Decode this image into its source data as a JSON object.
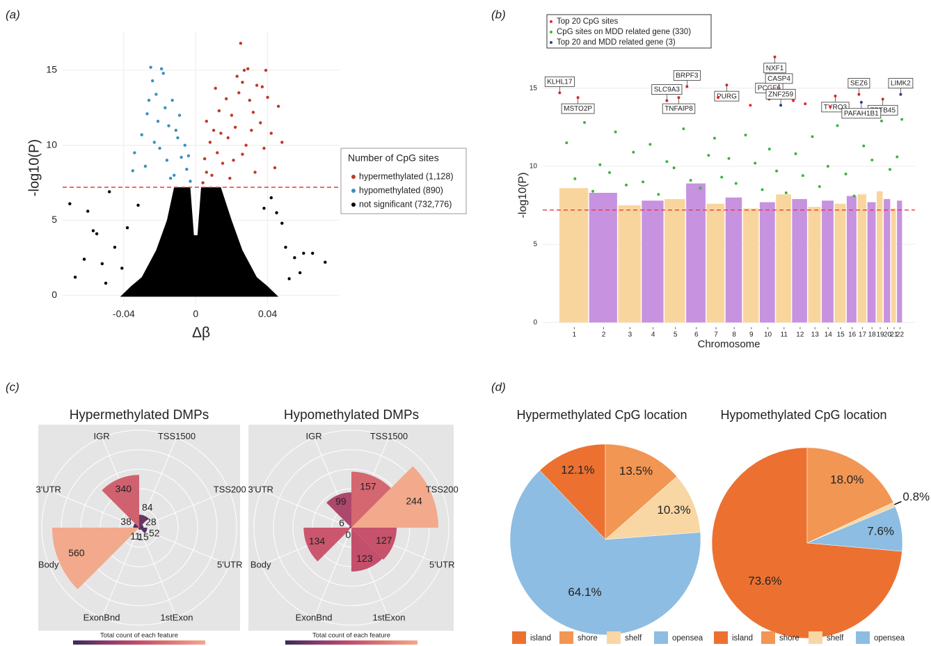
{
  "chart_data": [
    {
      "type": "scatter",
      "panel_label": "(a)",
      "x_label": "Δβ",
      "y_label": "-log10(P)",
      "xlim": [
        -0.074,
        0.08
      ],
      "ylim": [
        -0.6,
        17.6
      ],
      "xticks": [
        -0.04,
        0,
        0.04
      ],
      "yticks": [
        0,
        5,
        10,
        15
      ],
      "grid": true,
      "threshold": 7.2,
      "threshold_color": "#e8393a",
      "legend_title": "Number of CpG sites",
      "legend_position": "right",
      "series": [
        {
          "name": "hypermethylated (1,128)",
          "color": "#c0392b",
          "x": [
            0.004,
            0.006,
            0.005,
            0.008,
            0.01,
            0.012,
            0.015,
            0.018,
            0.02,
            0.022,
            0.024,
            0.026,
            0.027,
            0.025,
            0.03,
            0.032,
            0.034,
            0.036,
            0.038,
            0.04,
            0.042,
            0.044,
            0.046,
            0.017,
            0.013,
            0.009,
            0.021,
            0.028,
            0.033,
            0.048,
            0.031,
            0.023,
            0.019,
            0.011,
            0.029,
            0.037,
            0.026,
            0.014,
            0.006,
            0.039
          ],
          "y": [
            7.5,
            8.2,
            9.1,
            10.2,
            11,
            9.5,
            8.8,
            10.5,
            12,
            11.2,
            13.5,
            14.2,
            15,
            16.8,
            13,
            12.2,
            14,
            11.5,
            9.8,
            13.2,
            10.8,
            8.5,
            12.6,
            13.1,
            12.3,
            8,
            9,
            10,
            8.2,
            10.2,
            11,
            14.6,
            7.8,
            13.8,
            15.1,
            13.9,
            9.4,
            10.8,
            11.6,
            15
          ]
        },
        {
          "name": "hypomethylated (890)",
          "color": "#3a8fc5",
          "x": [
            -0.003,
            -0.005,
            -0.008,
            -0.01,
            -0.012,
            -0.015,
            -0.017,
            -0.02,
            -0.022,
            -0.018,
            -0.025,
            -0.024,
            -0.027,
            -0.03,
            -0.028,
            -0.034,
            -0.035,
            -0.013,
            -0.009,
            -0.006,
            -0.016,
            -0.021,
            -0.019,
            -0.011,
            -0.004,
            -0.023,
            -0.014,
            -0.026
          ],
          "y": [
            7.6,
            8.4,
            9.2,
            10.5,
            8,
            11.3,
            12.5,
            9.8,
            13.4,
            14.8,
            15.2,
            14.3,
            12.1,
            10.7,
            8.6,
            9.5,
            8.3,
            13,
            12,
            10,
            9,
            11.6,
            15.1,
            11,
            9.3,
            10.2,
            7.8,
            13
          ]
        },
        {
          "name": "not significant (732,776)",
          "color": "#000000",
          "x": [
            -0.07,
            -0.06,
            -0.057,
            -0.048,
            -0.055,
            -0.067,
            -0.052,
            -0.045,
            -0.041,
            -0.05,
            0.05,
            0.055,
            0.06,
            0.065,
            0.072,
            0.058,
            0.048,
            0.045,
            0.042,
            -0.038,
            -0.032,
            0.038,
            -0.062,
            0.052
          ],
          "y": [
            6.1,
            5.6,
            4.3,
            6.9,
            4.1,
            1.2,
            2.1,
            3.2,
            1.8,
            0.8,
            3.2,
            2.5,
            2.8,
            2.8,
            2.2,
            1.5,
            4.8,
            5.5,
            6.5,
            4.5,
            6,
            5.8,
            2.4,
            1.1
          ],
          "dense_region": {
            "x": [
              -0.042,
              -0.036,
              -0.03,
              -0.022,
              -0.016,
              -0.012,
              -0.003,
              -0.001,
              0.001,
              0.003,
              0.014,
              0.02,
              0.026,
              0.034,
              0.04,
              0.046
            ],
            "y": [
              -0.1,
              0.6,
              1.2,
              3,
              5,
              7.2,
              7.2,
              4,
              4,
              7.2,
              7.2,
              5,
              3,
              1.2,
              0.6,
              -0.1
            ]
          }
        }
      ]
    },
    {
      "type": "manhattan",
      "panel_label": "(b)",
      "x_label": "Chromosome",
      "y_label": "-log10(P)",
      "xlim": [
        -140,
        2980
      ],
      "ylim": [
        -0.3,
        17.3
      ],
      "yticks": [
        0,
        5,
        10,
        15
      ],
      "grid": true,
      "xticks": [
        {
          "value": 124.5,
          "label": "1"
        },
        {
          "value": 370.5,
          "label": "2"
        },
        {
          "value": 591,
          "label": "3"
        },
        {
          "value": 785.5,
          "label": "4"
        },
        {
          "value": 971.5,
          "label": "5"
        },
        {
          "value": 1147.5,
          "label": "6"
        },
        {
          "value": 1312.5,
          "label": "7"
        },
        {
          "value": 1465,
          "label": "8"
        },
        {
          "value": 1608.5,
          "label": "9"
        },
        {
          "value": 1747,
          "label": "10"
        },
        {
          "value": 1882.5,
          "label": "11"
        },
        {
          "value": 2017,
          "label": "12"
        },
        {
          "value": 2141.5,
          "label": "13"
        },
        {
          "value": 2252.5,
          "label": "14"
        },
        {
          "value": 2357,
          "label": "15"
        },
        {
          "value": 2453,
          "label": "16"
        },
        {
          "value": 2539.5,
          "label": "17"
        },
        {
          "value": 2619.5,
          "label": "18"
        },
        {
          "value": 2688.5,
          "label": "19"
        },
        {
          "value": 2749.5,
          "label": "20"
        },
        {
          "value": 2805,
          "label": "21"
        },
        {
          "value": 2854.5,
          "label": "22"
        }
      ],
      "chromosome_edges": [
        0,
        249,
        492,
        690,
        881,
        1062,
        1233,
        1392,
        1538,
        1679,
        1815,
        1950,
        2084,
        2199,
        2306,
        2408,
        2498,
        2581,
        2659,
        2718,
        2781,
        2829,
        2880
      ],
      "density_top": [
        8.6,
        8.3,
        7.5,
        7.8,
        7.9,
        8.9,
        7.6,
        8.0,
        7.3,
        7.7,
        8.2,
        7.9,
        7.4,
        7.8,
        7.6,
        8.1,
        8.2,
        7.7,
        8.4,
        7.9,
        7.3,
        7.8
      ],
      "band_colors": [
        "#f9d59e",
        "#c792df"
      ],
      "threshold": 7.2,
      "threshold_color": "#e8393a",
      "legend_position": "top-left",
      "series": [
        {
          "name": "Top 20 CpG sites",
          "color": "#e8262b",
          "x": [
            2,
            155,
            900,
            1000,
            1069,
            1402,
            1758,
            1805,
            1840,
            2312,
            2510,
            2710,
            1330,
            1600,
            2060,
            2270,
            1960
          ],
          "y": [
            14.7,
            14.4,
            14.2,
            14.4,
            15.1,
            15.2,
            14.3,
            17.0,
            14.9,
            14.5,
            14.6,
            14.3,
            14.4,
            13.9,
            14.0,
            13.8,
            14.2
          ],
          "labels": [
            "KLHL17",
            "MSTO2P",
            "SLC9A3",
            "TNFAIP8",
            "BRPF3",
            "PURG",
            "PCGF6",
            "NXF1",
            "CASP4",
            "TYRO3",
            "SEZ6",
            "ZBTB45",
            null,
            null,
            null,
            null,
            null
          ]
        },
        {
          "name": "CpG sites on MDD related gene (330)",
          "color": "#3cb43c",
          "x": [
            60,
            130,
            210,
            280,
            340,
            420,
            470,
            560,
            620,
            700,
            760,
            830,
            900,
            960,
            1040,
            1100,
            1180,
            1250,
            1300,
            1360,
            1420,
            1480,
            1560,
            1640,
            1700,
            1760,
            1820,
            1900,
            1980,
            2040,
            2120,
            2180,
            2250,
            2330,
            2400,
            2470,
            2550,
            2620,
            2700,
            2770,
            2830,
            2870
          ],
          "y": [
            11.5,
            9.2,
            12.8,
            8.4,
            10.1,
            9.6,
            12.2,
            8.8,
            10.9,
            9.0,
            11.4,
            8.2,
            10.3,
            9.9,
            12.4,
            9.1,
            8.6,
            10.7,
            11.8,
            9.3,
            10.5,
            8.9,
            12.0,
            10.2,
            8.5,
            11.1,
            9.7,
            8.3,
            10.8,
            9.4,
            11.9,
            8.7,
            10.0,
            12.6,
            9.5,
            8.1,
            11.3,
            10.4,
            12.9,
            9.8,
            10.6,
            13.0
          ]
        },
        {
          "name": "Top 20 and MDD related gene (3)",
          "color": "#2b3fa8",
          "x": [
            1855,
            2530,
            2860
          ],
          "y": [
            13.9,
            14.1,
            14.6
          ],
          "labels": [
            "ZNF259",
            "PAFAH1B1",
            "LIMK2"
          ]
        }
      ]
    },
    {
      "type": "polar_bar",
      "panel_label": "(c)",
      "title": "Hypermethylated DMPs",
      "categories": [
        "IGR",
        "TSS1500",
        "TSS200",
        "5'UTR",
        "1stExon",
        "ExonBnd",
        "Body",
        "3'UTR"
      ],
      "values": [
        340,
        84,
        28,
        52,
        15,
        11,
        560,
        38
      ],
      "colorscale": [
        "#3b2c5c",
        "#8a3b6c",
        "#c44e6c",
        "#e07a72",
        "#f2a98c"
      ],
      "colorbar_label": "Total count of each feature"
    },
    {
      "type": "polar_bar",
      "title": "Hypomethylated DMPs",
      "categories": [
        "IGR",
        "TSS1500",
        "TSS200",
        "5'UTR",
        "1stExon",
        "ExonBnd",
        "Body",
        "3'UTR"
      ],
      "values": [
        99,
        157,
        244,
        127,
        123,
        0,
        134,
        6
      ],
      "colorscale": [
        "#3b2c5c",
        "#8a3b6c",
        "#c44e6c",
        "#e07a72",
        "#f2a98c"
      ],
      "colorbar_label": "Total count of each feature"
    },
    {
      "type": "pie",
      "panel_label": "(d)",
      "title": "Hypermethylated CpG location",
      "categories": [
        "island",
        "shore",
        "shelf",
        "opensea"
      ],
      "values": [
        12.1,
        13.5,
        10.3,
        64.1
      ],
      "value_labels": [
        "12.1%",
        "13.5%",
        "10.3%",
        "64.1%"
      ],
      "colors": [
        "#ec7131",
        "#f29653",
        "#f8d7a5",
        "#8dbde2"
      ],
      "legend_position": "bottom"
    },
    {
      "type": "pie",
      "title": "Hypomethylated CpG location",
      "categories": [
        "island",
        "shore",
        "shelf",
        "opensea"
      ],
      "values": [
        73.6,
        18.0,
        0.8,
        7.6
      ],
      "value_labels": [
        "73.6%",
        "18.0%",
        "0.8%",
        "7.6%"
      ],
      "colors": [
        "#ec7131",
        "#f29653",
        "#f8d7a5",
        "#8dbde2"
      ],
      "legend_position": "bottom"
    }
  ]
}
